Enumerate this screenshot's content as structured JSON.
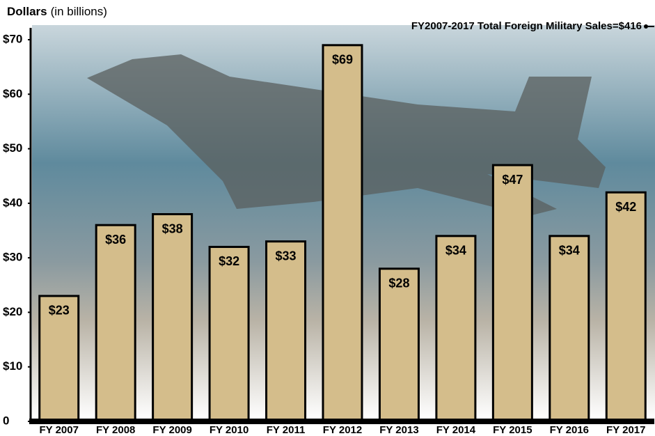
{
  "chart_data": {
    "type": "bar",
    "y_label": "Dollars",
    "y_label_unit": "(in billions)",
    "annotation": "FY2007-2017 Total Foreign Military Sales=$416",
    "categories": [
      "FY 2007",
      "FY 2008",
      "FY 2009",
      "FY 2010",
      "FY 2011",
      "FY 2012",
      "FY 2013",
      "FY 2014",
      "FY 2015",
      "FY 2016",
      "FY 2017"
    ],
    "values": [
      23,
      36,
      38,
      32,
      33,
      69,
      28,
      34,
      47,
      34,
      42
    ],
    "value_labels": [
      "$23",
      "$36",
      "$38",
      "$32",
      "$33",
      "$69",
      "$28",
      "$34",
      "$47",
      "$34",
      "$42"
    ],
    "color": "#d4bd8b",
    "ylim": [
      0,
      70
    ],
    "yticks": [
      0,
      {
        "value": 10,
        "label": "$10"
      },
      {
        "value": 20,
        "label": "$20"
      },
      {
        "value": 30,
        "label": "$30"
      },
      {
        "value": 40,
        "label": "$40"
      },
      {
        "value": 50,
        "label": "$50"
      },
      {
        "value": 60,
        "label": "$60"
      },
      {
        "value": 70,
        "label": "$70"
      }
    ]
  }
}
